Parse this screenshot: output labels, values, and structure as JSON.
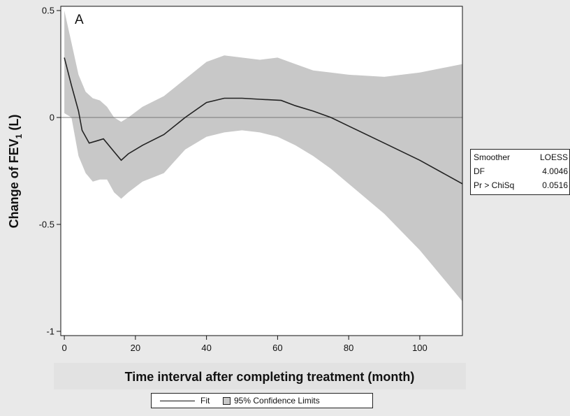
{
  "chart_data": {
    "type": "line",
    "panel_label": "A",
    "xlabel": "Time interval after completing treatment (month)",
    "ylabel_main": "Change of FEV",
    "ylabel_sub": "1",
    "ylabel_unit": "(L)",
    "xlim": [
      -1,
      112
    ],
    "ylim": [
      -1.02,
      0.52
    ],
    "x_ticks": [
      0,
      20,
      40,
      60,
      80,
      100
    ],
    "y_ticks": [
      {
        "value": 0.5,
        "label": "0.5"
      },
      {
        "value": 0,
        "label": "0"
      },
      {
        "value": -0.5,
        "label": "-0.5"
      },
      {
        "value": -1,
        "label": "-1"
      }
    ],
    "reference_line_y": 0,
    "series": [
      {
        "name": "Fit",
        "color": "#222222",
        "x": [
          0,
          2,
          4,
          5,
          7,
          9,
          11,
          14,
          16,
          18,
          22,
          28,
          34,
          40,
          45,
          50,
          55,
          61,
          65,
          70,
          75,
          80,
          90,
          100,
          112
        ],
        "y": [
          0.28,
          0.15,
          0.03,
          -0.06,
          -0.12,
          -0.11,
          -0.1,
          -0.16,
          -0.2,
          -0.17,
          -0.13,
          -0.08,
          0.0,
          0.07,
          0.09,
          0.09,
          0.085,
          0.08,
          0.055,
          0.03,
          0.0,
          -0.04,
          -0.12,
          -0.2,
          -0.31
        ]
      },
      {
        "name": "95% Confidence Limits",
        "color": "#c8c8c8",
        "x": [
          0,
          2,
          4,
          6,
          8,
          10,
          12,
          14,
          16,
          18,
          22,
          28,
          34,
          40,
          45,
          50,
          55,
          60,
          65,
          70,
          75,
          80,
          90,
          100,
          112
        ],
        "upper": [
          0.5,
          0.35,
          0.2,
          0.12,
          0.09,
          0.08,
          0.05,
          0.0,
          -0.02,
          0.0,
          0.05,
          0.1,
          0.18,
          0.26,
          0.29,
          0.28,
          0.27,
          0.28,
          0.25,
          0.22,
          0.21,
          0.2,
          0.19,
          0.21,
          0.25
        ],
        "lower": [
          0.02,
          0.0,
          -0.18,
          -0.26,
          -0.3,
          -0.29,
          -0.29,
          -0.35,
          -0.38,
          -0.35,
          -0.3,
          -0.26,
          -0.15,
          -0.09,
          -0.07,
          -0.06,
          -0.07,
          -0.09,
          -0.13,
          -0.18,
          -0.24,
          -0.31,
          -0.45,
          -0.62,
          -0.86
        ]
      }
    ],
    "stats": [
      {
        "label": "Smoother",
        "value": "LOESS"
      },
      {
        "label": "DF",
        "value": "4.0046"
      },
      {
        "label": "Pr > ChiSq",
        "value": "0.0516"
      }
    ],
    "legend": {
      "fit": "Fit",
      "ci": "95% Confidence Limits",
      "placement": "bottom"
    },
    "grid": false
  }
}
